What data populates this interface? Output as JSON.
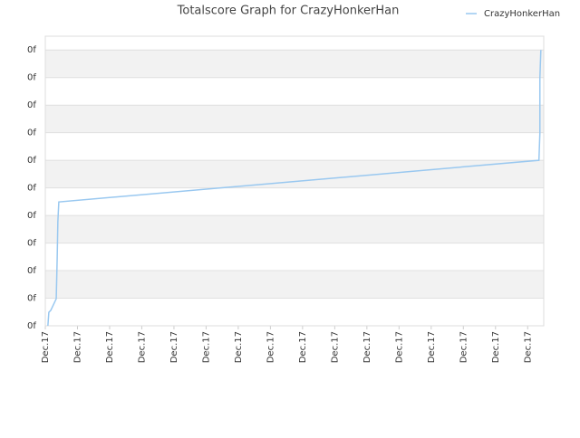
{
  "chart_data": {
    "type": "line",
    "title": "Totalscore Graph for CrazyHonkerHan",
    "x": [
      0.08,
      0.11,
      0.17,
      0.34,
      0.37,
      0.39,
      0.42,
      15.35,
      15.38,
      15.38,
      15.41
    ],
    "series": [
      {
        "name": "CrazyHonkerHan",
        "color": "#99c8f0",
        "values": [
          0,
          0.49,
          0.56,
          0.98,
          2.49,
          3.77,
          4.49,
          6.0,
          6.98,
          8.98,
          10.0
        ]
      }
    ],
    "xlim": [
      0,
      15.5
    ],
    "xticks": [
      {
        "value": 0,
        "label": "Dec.17"
      },
      {
        "value": 1,
        "label": "Dec.17"
      },
      {
        "value": 2,
        "label": "Dec.17"
      },
      {
        "value": 3,
        "label": "Dec.17"
      },
      {
        "value": 4,
        "label": "Dec.17"
      },
      {
        "value": 5,
        "label": "Dec.17"
      },
      {
        "value": 6,
        "label": "Dec.17"
      },
      {
        "value": 7,
        "label": "Dec.17"
      },
      {
        "value": 8,
        "label": "Dec.17"
      },
      {
        "value": 9,
        "label": "Dec.17"
      },
      {
        "value": 10,
        "label": "Dec.17"
      },
      {
        "value": 11,
        "label": "Dec.17"
      },
      {
        "value": 12,
        "label": "Dec.17"
      },
      {
        "value": 13,
        "label": "Dec.17"
      },
      {
        "value": 14,
        "label": "Dec.17"
      },
      {
        "value": 15,
        "label": "Dec.17"
      }
    ],
    "ylim": [
      0,
      10.5
    ],
    "yticks": [
      {
        "value": 0,
        "label": "0f"
      },
      {
        "value": 1,
        "label": "0f"
      },
      {
        "value": 2,
        "label": "0f"
      },
      {
        "value": 3,
        "label": "0f"
      },
      {
        "value": 4,
        "label": "0f"
      },
      {
        "value": 5,
        "label": "0f"
      },
      {
        "value": 6,
        "label": "0f"
      },
      {
        "value": 7,
        "label": "0f"
      },
      {
        "value": 8,
        "label": "0f"
      },
      {
        "value": 9,
        "label": "0f"
      },
      {
        "value": 10,
        "label": "0f"
      }
    ],
    "grid": true,
    "legend": "top-right"
  }
}
